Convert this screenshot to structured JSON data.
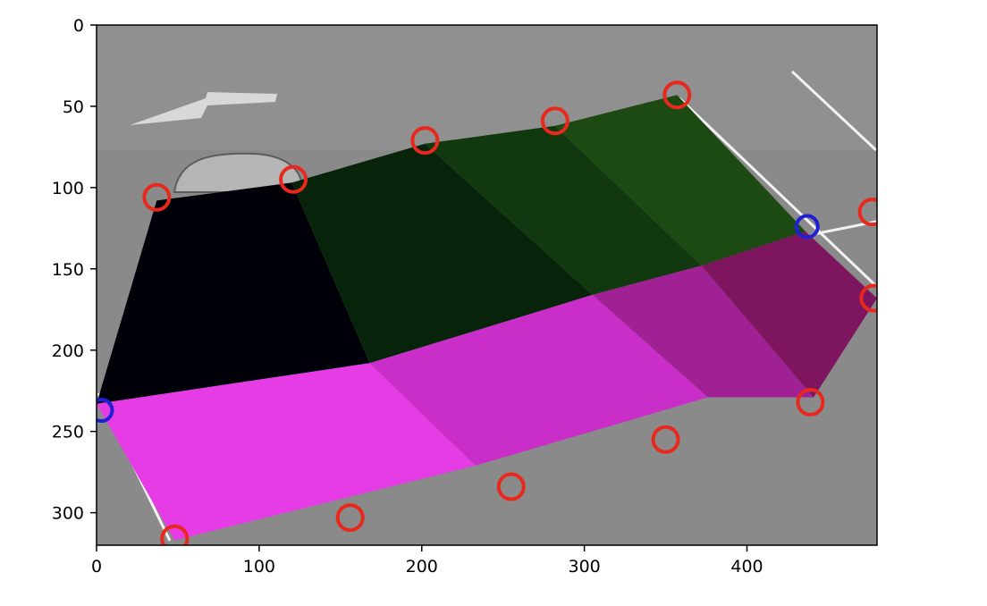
{
  "chart_data": {
    "type": "image",
    "title": "",
    "xlabel": "",
    "ylabel": "",
    "xlim": [
      0,
      480
    ],
    "ylim": [
      320,
      0
    ],
    "x_ticks": [
      0,
      100,
      200,
      300,
      400
    ],
    "y_ticks": [
      0,
      50,
      100,
      150,
      200,
      250,
      300
    ],
    "x_tick_labels": [
      "0",
      "100",
      "200",
      "300",
      "400"
    ],
    "y_tick_labels": [
      "0",
      "50",
      "100",
      "150",
      "200",
      "250",
      "300"
    ],
    "background": "grayscale parking lot photo",
    "series": [
      {
        "group": "upper-strip",
        "cells": [
          {
            "polygon": [
              [
                37,
                108
              ],
              [
                120,
                97
              ],
              [
                168,
                208
              ],
              [
                0,
                233
              ]
            ],
            "color": "#000008"
          },
          {
            "polygon": [
              [
                120,
                97
              ],
              [
                202,
                73
              ],
              [
                305,
                166
              ],
              [
                168,
                208
              ]
            ],
            "color": "#07240a"
          },
          {
            "polygon": [
              [
                202,
                73
              ],
              [
                282,
                62
              ],
              [
                372,
                148
              ],
              [
                305,
                166
              ]
            ],
            "color": "#12380f"
          },
          {
            "polygon": [
              [
                282,
                62
              ],
              [
                357,
                43
              ],
              [
                436,
                127
              ],
              [
                372,
                148
              ]
            ],
            "color": "#1d4a12"
          }
        ]
      },
      {
        "group": "lower-strip",
        "cells": [
          {
            "polygon": [
              [
                0,
                233
              ],
              [
                168,
                208
              ],
              [
                233,
                271
              ],
              [
                48,
                317
              ]
            ],
            "color": "#e63ce6"
          },
          {
            "polygon": [
              [
                168,
                208
              ],
              [
                305,
                166
              ],
              [
                376,
                229
              ],
              [
                233,
                271
              ]
            ],
            "color": "#c92ec9"
          },
          {
            "polygon": [
              [
                305,
                166
              ],
              [
                372,
                148
              ],
              [
                441,
                229
              ],
              [
                376,
                229
              ]
            ],
            "color": "#9f2194"
          },
          {
            "polygon": [
              [
                372,
                148
              ],
              [
                436,
                127
              ],
              [
                480,
                168
              ],
              [
                441,
                229
              ]
            ],
            "color": "#7d165f"
          }
        ]
      }
    ],
    "red_markers": [
      [
        37,
        106
      ],
      [
        121,
        95
      ],
      [
        202,
        71
      ],
      [
        282,
        59
      ],
      [
        357,
        43
      ],
      [
        477,
        115
      ],
      [
        478,
        168
      ],
      [
        439,
        232
      ],
      [
        350,
        255
      ],
      [
        255,
        284
      ],
      [
        156,
        303
      ],
      [
        48,
        316
      ]
    ],
    "blue_markers": [
      [
        437,
        124
      ],
      [
        3,
        237
      ]
    ],
    "marker_colors": {
      "red": "#e8281c",
      "blue": "#1f1fd6"
    }
  }
}
